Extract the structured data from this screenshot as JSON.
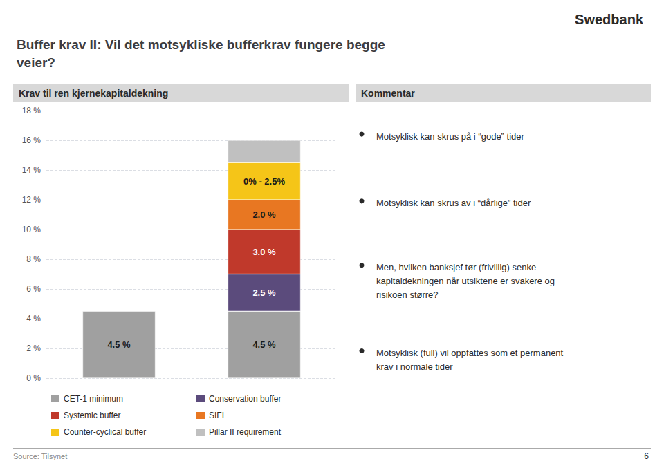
{
  "chart_data": {
    "type": "bar",
    "title": "Buffer krav II: Vil det motsykliske bufferkrav fungere begge\nveier?",
    "subtitle": "Krav til ren kjernekapitaldekning",
    "annotations": [
      "Swedbank",
      "Kommentar",
      "Motsyklisk kan skrus på i “gode” tider",
      "Motsyklisk kan skrus av i “dårlige” tider",
      "Men, hvilken banksjef tør (frivillig) senke\nkapitaldekningen når utsiktene er svakere og\nrisikoen større?",
      "Motsyklisk (full) vil oppfattes som et permanent\nkrav i normale tider",
      "Source: Tilsynet",
      "6"
    ],
    "categories": [
      null,
      null
    ],
    "series": [
      {
        "name": "CET-1 minimum",
        "color": "#a0a0a0",
        "values": [
          4.5,
          4.5
        ],
        "value_labels": [
          "4.5 %",
          "4.5 %"
        ]
      },
      {
        "name": "Conservation buffer",
        "color": "#5b4b7c",
        "values": [
          null,
          2.5
        ],
        "value_labels": [
          null,
          "2.5 %"
        ]
      },
      {
        "name": "Systemic buffer",
        "color": "#c0392b",
        "values": [
          null,
          3.0
        ],
        "value_labels": [
          null,
          "3.0 %"
        ]
      },
      {
        "name": "SIFI",
        "color": "#e87722",
        "values": [
          null,
          2.0
        ],
        "value_labels": [
          null,
          "2.0 %"
        ]
      },
      {
        "name": "Counter-cyclical buffer",
        "color": "#f5c518",
        "values": [
          null,
          2.5
        ],
        "value_labels": [
          null,
          "0% - 2.5%"
        ]
      },
      {
        "name": "Pillar II requirement",
        "color": "#c0c0c0",
        "values": [
          null,
          1.5
        ],
        "value_labels": [
          null,
          null
        ]
      }
    ],
    "stacked": true,
    "data_labels": true,
    "ylim": [
      0,
      18
    ],
    "yticks": [
      {
        "value": 0,
        "label": "0 %"
      },
      {
        "value": 2,
        "label": "2 %"
      },
      {
        "value": 4,
        "label": "4 %"
      },
      {
        "value": 6,
        "label": "6 %"
      },
      {
        "value": 8,
        "label": "8 %"
      },
      {
        "value": 10,
        "label": "10 %"
      },
      {
        "value": 12,
        "label": "12 %"
      },
      {
        "value": 14,
        "label": "14 %"
      },
      {
        "value": 16,
        "label": "16 %"
      },
      {
        "value": 18,
        "label": "18 %"
      }
    ],
    "grid": true,
    "legend": "lower left",
    "tick_labels": "y"
  }
}
